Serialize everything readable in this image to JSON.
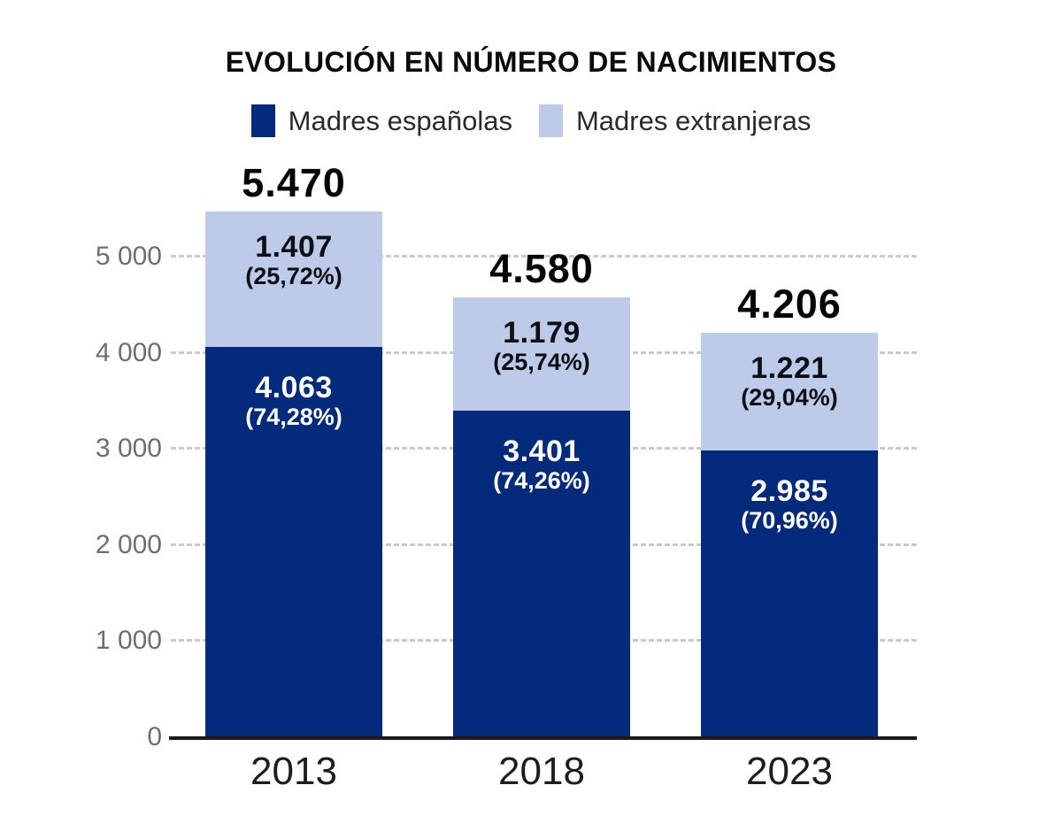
{
  "title": "EVOLUCIÓN EN NÚMERO DE NACIMIENTOS",
  "legend": [
    {
      "label": "Madres españolas",
      "color": "#032a7b"
    },
    {
      "label": "Madres extranjeras",
      "color": "#bdcae8"
    }
  ],
  "colors": {
    "dark_blue": "#032a7b",
    "light_blue": "#bdcae8",
    "axis_line": "#1a1a1a",
    "gridline": "#c9c9c9",
    "tick_text": "#6e6e6e",
    "title_text": "#0b0b0b"
  },
  "chart_data": {
    "type": "bar",
    "stacked": true,
    "title": "EVOLUCIÓN EN NÚMERO DE NACIMIENTOS",
    "categories": [
      "2013",
      "2018",
      "2023"
    ],
    "series": [
      {
        "name": "Madres españolas",
        "color": "#032a7b",
        "values": [
          4063,
          3401,
          2985
        ],
        "value_labels": [
          "4.063",
          "3.401",
          "2.985"
        ],
        "pct_labels": [
          "(74,28%)",
          "(74,26%)",
          "(70,96%)"
        ]
      },
      {
        "name": "Madres extranjeras",
        "color": "#bdcae8",
        "values": [
          1407,
          1179,
          1221
        ],
        "value_labels": [
          "1.407",
          "1.179",
          "1.221"
        ],
        "pct_labels": [
          "(25,72%)",
          "(25,74%)",
          "(29,04%)"
        ]
      }
    ],
    "totals": [
      5470,
      4580,
      4206
    ],
    "total_labels": [
      "5.470",
      "4.580",
      "4.206"
    ],
    "y_ticks": [
      0,
      1000,
      2000,
      3000,
      4000,
      5000
    ],
    "y_tick_labels": [
      "0",
      "1 000",
      "2 000",
      "3 000",
      "4 000",
      "5 000"
    ],
    "ylim": [
      0,
      5470
    ],
    "xlabel": "",
    "ylabel": "",
    "grid": "horizontal-dashed",
    "legend_position": "top-center"
  }
}
